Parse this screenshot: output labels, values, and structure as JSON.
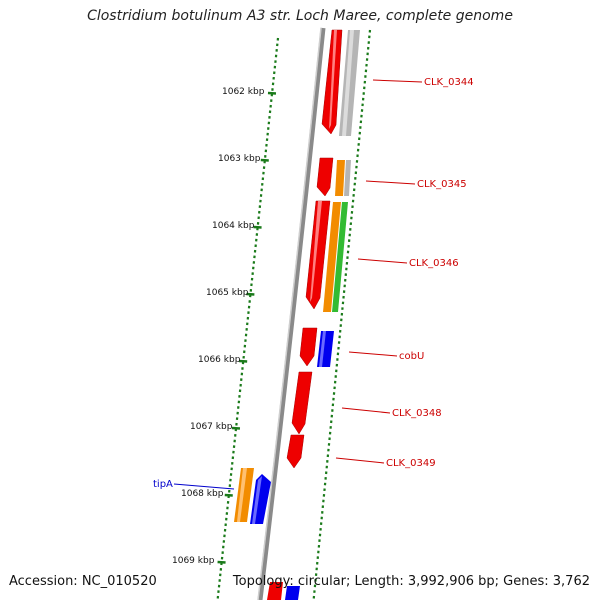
{
  "title": "Clostridium botulinum A3 str. Loch Maree, complete genome",
  "accession_text": "Accession: NC_010520",
  "stats_text": "Topology: circular; Length: 3,992,906 bp; Genes: 3,762",
  "colors": {
    "backbone": "#7a7a7a",
    "tick": "#1a7a1a",
    "label_red": "#cc0000",
    "label_blue": "#0000cc",
    "cds_red": "#ee0000",
    "gene_orange": "#f28c00",
    "gene_green": "#33bb33",
    "gene_blue": "#0000ee",
    "gene_gray": "#b5b5b5"
  },
  "scale_labels": [
    "1062 kbp",
    "1063 kbp",
    "1064 kbp",
    "1065 kbp",
    "1066 kbp",
    "1067 kbp",
    "1068 kbp",
    "1069 kbp"
  ],
  "gene_labels": [
    "CLK_0344",
    "CLK_0345",
    "CLK_0346",
    "cobU",
    "CLK_0348",
    "CLK_0349",
    "tipA"
  ]
}
